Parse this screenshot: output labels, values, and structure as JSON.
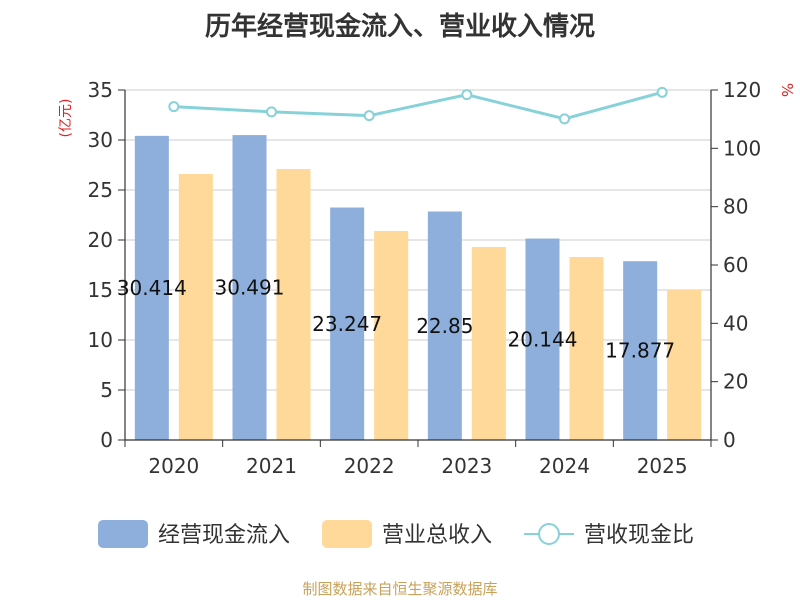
{
  "chart_data": {
    "type": "bar",
    "title": "历年经营现金流入、营业收入情况",
    "categories": [
      "2020",
      "2021",
      "2022",
      "2023",
      "2024",
      "2025"
    ],
    "left_axis_label": "(亿元)",
    "right_axis_label": "%",
    "ylim": [
      0,
      35
    ],
    "y_ticks": [
      0,
      5,
      10,
      15,
      20,
      25,
      30,
      35
    ],
    "y2lim": [
      0,
      120
    ],
    "y2_ticks": [
      0,
      20,
      40,
      60,
      80,
      100,
      120
    ],
    "grid": true,
    "legend_position": "bottom",
    "series": [
      {
        "name": "经营现金流入",
        "type": "bar",
        "axis": "left",
        "color": "#8eaedb",
        "values": [
          30.414,
          30.491,
          23.247,
          22.85,
          20.144,
          17.877
        ],
        "labels": [
          "30.414",
          "30.491",
          "23.247",
          "22.85",
          "20.144",
          "17.877"
        ]
      },
      {
        "name": "营业总收入",
        "type": "bar",
        "axis": "left",
        "color": "#fed99a",
        "values": [
          26.6,
          27.1,
          20.9,
          19.3,
          18.3,
          15.0
        ]
      },
      {
        "name": "营收现金比",
        "type": "line",
        "axis": "right",
        "color": "#86d2d8",
        "values": [
          114.3,
          112.5,
          111.2,
          118.4,
          110.1,
          119.2
        ]
      }
    ]
  },
  "source_note": "制图数据来自恒生聚源数据库"
}
